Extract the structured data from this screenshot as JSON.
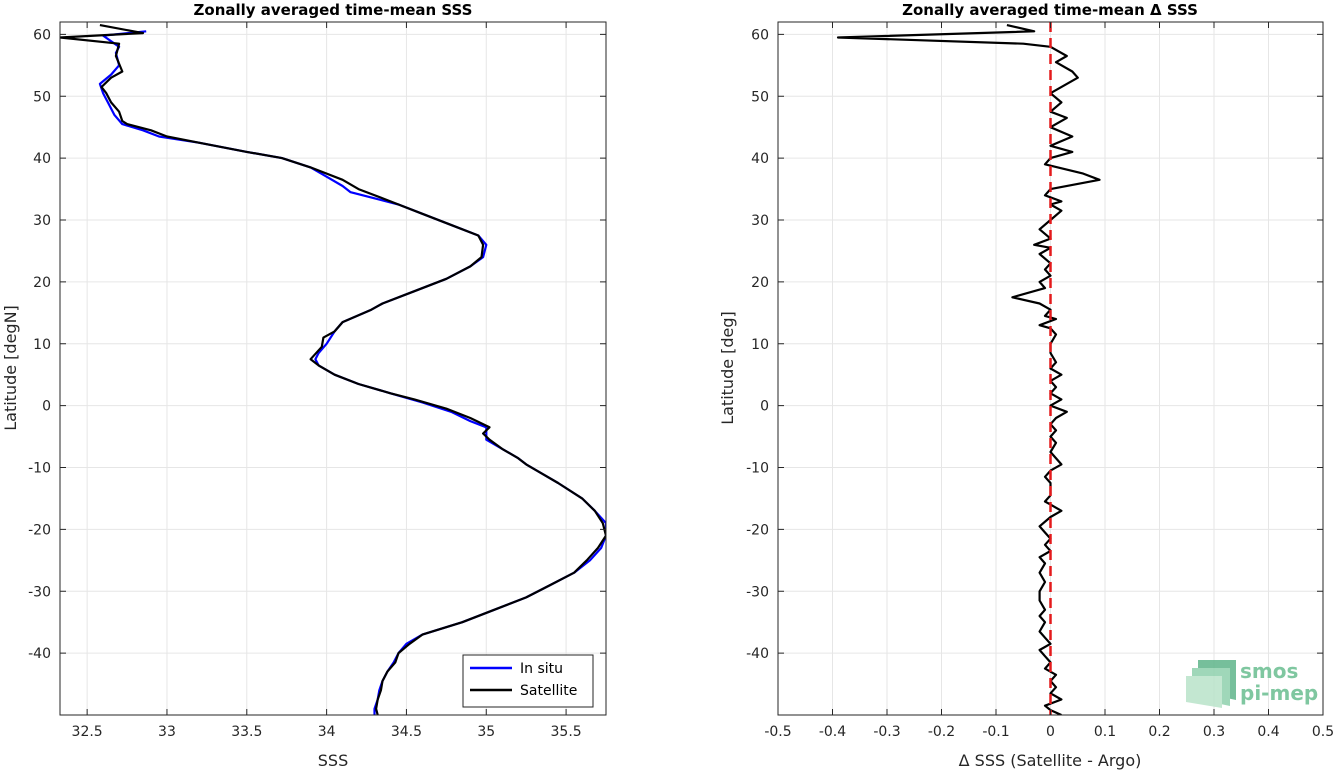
{
  "colors": {
    "in_situ": "#0000ff",
    "satellite": "#000000",
    "zero_line": "#e41a1c",
    "grid": "#e6e6e6",
    "axis": "#262626",
    "logo": "#7fc7a0"
  },
  "logo": {
    "line1": "smos",
    "line2": "pi-mep",
    "icon": "smos-pimep-logo-icon"
  },
  "chart_data": [
    {
      "type": "line",
      "title": "Zonally averaged time-mean SSS",
      "xlabel": "SSS",
      "ylabel": "Latitude [degN]",
      "xlim": [
        32.33,
        35.75
      ],
      "ylim": [
        -50,
        62
      ],
      "xticks": [
        32.5,
        33,
        33.5,
        34,
        34.5,
        35,
        35.5
      ],
      "xticklabels": [
        "32.5",
        "33",
        "33.5",
        "34",
        "34.5",
        "35",
        "35.5"
      ],
      "yticks": [
        -40,
        -30,
        -20,
        -10,
        0,
        10,
        20,
        30,
        40,
        50,
        60
      ],
      "yticklabels": [
        "-40",
        "-30",
        "-20",
        "-10",
        "0",
        "10",
        "20",
        "30",
        "40",
        "50",
        "60"
      ],
      "grid": true,
      "legend_position": "bottom-right",
      "series": [
        {
          "name": "In situ",
          "color": "#0000ff",
          "points": [
            [
              32.87,
              60.5
            ],
            [
              32.6,
              59.8
            ],
            [
              32.7,
              58.0
            ],
            [
              32.68,
              57.0
            ],
            [
              32.7,
              55.0
            ],
            [
              32.65,
              53.5
            ],
            [
              32.58,
              52.0
            ],
            [
              32.6,
              50.5
            ],
            [
              32.63,
              49.0
            ],
            [
              32.67,
              47.0
            ],
            [
              32.72,
              45.5
            ],
            [
              32.85,
              44.5
            ],
            [
              32.95,
              43.5
            ],
            [
              33.2,
              42.5
            ],
            [
              33.5,
              41.0
            ],
            [
              33.72,
              40.0
            ],
            [
              33.9,
              38.5
            ],
            [
              34.0,
              37.0
            ],
            [
              34.1,
              35.5
            ],
            [
              34.15,
              34.5
            ],
            [
              34.3,
              33.5
            ],
            [
              34.45,
              32.5
            ],
            [
              34.6,
              31.0
            ],
            [
              34.8,
              29.0
            ],
            [
              34.95,
              27.5
            ],
            [
              35.0,
              26.0
            ],
            [
              34.98,
              24.0
            ],
            [
              34.9,
              22.5
            ],
            [
              34.75,
              20.5
            ],
            [
              34.55,
              18.5
            ],
            [
              34.35,
              16.5
            ],
            [
              34.28,
              15.5
            ],
            [
              34.1,
              13.5
            ],
            [
              34.05,
              12.0
            ],
            [
              34.0,
              10.0
            ],
            [
              33.95,
              8.5
            ],
            [
              33.93,
              7.5
            ],
            [
              33.95,
              6.5
            ],
            [
              34.05,
              5.0
            ],
            [
              34.2,
              3.5
            ],
            [
              34.4,
              2.0
            ],
            [
              34.6,
              0.5
            ],
            [
              34.78,
              -1.0
            ],
            [
              34.9,
              -2.5
            ],
            [
              35.0,
              -3.5
            ],
            [
              35.0,
              -4.5
            ],
            [
              35.0,
              -5.5
            ],
            [
              35.1,
              -7.0
            ],
            [
              35.2,
              -8.5
            ],
            [
              35.25,
              -9.5
            ],
            [
              35.35,
              -11.0
            ],
            [
              35.45,
              -12.5
            ],
            [
              35.6,
              -15.0
            ],
            [
              35.68,
              -17.0
            ],
            [
              35.75,
              -19.0
            ],
            [
              35.75,
              -21.0
            ],
            [
              35.72,
              -23.0
            ],
            [
              35.65,
              -25.0
            ],
            [
              35.55,
              -27.0
            ],
            [
              35.4,
              -29.0
            ],
            [
              35.25,
              -31.0
            ],
            [
              35.05,
              -33.0
            ],
            [
              34.85,
              -35.0
            ],
            [
              34.6,
              -37.0
            ],
            [
              34.5,
              -38.5
            ],
            [
              34.45,
              -40.0
            ],
            [
              34.42,
              -41.5
            ],
            [
              34.38,
              -43.0
            ],
            [
              34.35,
              -44.5
            ],
            [
              34.33,
              -46.0
            ],
            [
              34.32,
              -47.5
            ],
            [
              34.3,
              -49.0
            ],
            [
              34.3,
              -50.0
            ]
          ]
        },
        {
          "name": "Satellite",
          "color": "#000000",
          "points": [
            [
              32.58,
              61.5
            ],
            [
              32.85,
              60.2
            ],
            [
              32.33,
              59.5
            ],
            [
              32.7,
              58.5
            ],
            [
              32.68,
              56.5
            ],
            [
              32.72,
              54.0
            ],
            [
              32.65,
              53.0
            ],
            [
              32.59,
              51.5
            ],
            [
              32.62,
              50.5
            ],
            [
              32.65,
              49.0
            ],
            [
              32.7,
              47.5
            ],
            [
              32.72,
              46.0
            ],
            [
              32.75,
              45.5
            ],
            [
              32.9,
              44.5
            ],
            [
              33.0,
              43.5
            ],
            [
              33.2,
              42.5
            ],
            [
              33.5,
              41.0
            ],
            [
              33.72,
              40.0
            ],
            [
              33.9,
              38.5
            ],
            [
              34.1,
              36.5
            ],
            [
              34.2,
              35.0
            ],
            [
              34.35,
              33.5
            ],
            [
              34.45,
              32.5
            ],
            [
              34.6,
              31.0
            ],
            [
              34.8,
              29.0
            ],
            [
              34.95,
              27.5
            ],
            [
              34.98,
              26.0
            ],
            [
              34.97,
              24.0
            ],
            [
              34.9,
              22.5
            ],
            [
              34.75,
              20.5
            ],
            [
              34.55,
              18.5
            ],
            [
              34.35,
              16.5
            ],
            [
              34.28,
              15.5
            ],
            [
              34.1,
              13.5
            ],
            [
              34.05,
              12.0
            ],
            [
              33.98,
              11.0
            ],
            [
              33.97,
              9.5
            ],
            [
              33.9,
              7.5
            ],
            [
              33.95,
              6.5
            ],
            [
              34.05,
              5.0
            ],
            [
              34.2,
              3.5
            ],
            [
              34.4,
              2.0
            ],
            [
              34.55,
              1.0
            ],
            [
              34.75,
              -0.5
            ],
            [
              34.9,
              -2.0
            ],
            [
              35.02,
              -3.5
            ],
            [
              34.98,
              -4.5
            ],
            [
              35.02,
              -5.5
            ],
            [
              35.1,
              -7.0
            ],
            [
              35.2,
              -8.5
            ],
            [
              35.25,
              -9.5
            ],
            [
              35.35,
              -11.0
            ],
            [
              35.45,
              -12.5
            ],
            [
              35.6,
              -15.0
            ],
            [
              35.68,
              -17.0
            ],
            [
              35.73,
              -19.0
            ],
            [
              35.75,
              -21.0
            ],
            [
              35.7,
              -23.0
            ],
            [
              35.63,
              -25.0
            ],
            [
              35.55,
              -27.0
            ],
            [
              35.4,
              -29.0
            ],
            [
              35.25,
              -31.0
            ],
            [
              35.05,
              -33.0
            ],
            [
              34.85,
              -35.0
            ],
            [
              34.6,
              -37.0
            ],
            [
              34.52,
              -38.5
            ],
            [
              34.45,
              -40.0
            ],
            [
              34.43,
              -41.5
            ],
            [
              34.38,
              -43.0
            ],
            [
              34.35,
              -44.5
            ],
            [
              34.34,
              -46.0
            ],
            [
              34.32,
              -47.5
            ],
            [
              34.31,
              -49.0
            ],
            [
              34.32,
              -50.0
            ]
          ]
        }
      ]
    },
    {
      "type": "line",
      "title": "Zonally averaged time-mean Δ SSS",
      "xlabel": "Δ SSS (Satellite - Argo)",
      "ylabel": "Latitude [deg]",
      "xlim": [
        -0.5,
        0.5
      ],
      "ylim": [
        -50,
        62
      ],
      "xticks": [
        -0.5,
        -0.4,
        -0.3,
        -0.2,
        -0.1,
        0,
        0.1,
        0.2,
        0.3,
        0.4,
        0.5
      ],
      "xticklabels": [
        "-0.5",
        "-0.4",
        "-0.3",
        "-0.2",
        "-0.1",
        "0",
        "0.1",
        "0.2",
        "0.3",
        "0.4",
        "0.5"
      ],
      "yticks": [
        -40,
        -30,
        -20,
        -10,
        0,
        10,
        20,
        30,
        40,
        50,
        60
      ],
      "yticklabels": [
        "-40",
        "-30",
        "-20",
        "-10",
        "0",
        "10",
        "20",
        "30",
        "40",
        "50",
        "60"
      ],
      "grid": true,
      "reference_line": {
        "x": 0,
        "style": "dashed",
        "color": "#e41a1c"
      },
      "series": [
        {
          "color": "#000000",
          "points": [
            [
              -0.08,
              61.5
            ],
            [
              -0.03,
              60.5
            ],
            [
              -0.39,
              59.5
            ],
            [
              -0.05,
              58.5
            ],
            [
              0.0,
              58.0
            ],
            [
              0.03,
              56.5
            ],
            [
              0.01,
              55.5
            ],
            [
              0.04,
              54.0
            ],
            [
              0.05,
              53.0
            ],
            [
              0.0,
              50.5
            ],
            [
              0.02,
              49.0
            ],
            [
              0.0,
              47.5
            ],
            [
              0.03,
              46.5
            ],
            [
              0.0,
              45.0
            ],
            [
              0.04,
              43.5
            ],
            [
              0.0,
              42.0
            ],
            [
              0.04,
              41.0
            ],
            [
              0.0,
              40.0
            ],
            [
              -0.01,
              39.0
            ],
            [
              0.06,
              37.5
            ],
            [
              0.09,
              36.5
            ],
            [
              0.0,
              35.0
            ],
            [
              -0.01,
              34.0
            ],
            [
              0.02,
              33.0
            ],
            [
              0.0,
              32.5
            ],
            [
              0.02,
              31.5
            ],
            [
              0.0,
              30.0
            ],
            [
              -0.02,
              28.5
            ],
            [
              0.0,
              27.0
            ],
            [
              -0.03,
              26.0
            ],
            [
              0.0,
              25.5
            ],
            [
              -0.02,
              24.5
            ],
            [
              0.0,
              23.0
            ],
            [
              -0.01,
              22.0
            ],
            [
              0.0,
              21.0
            ],
            [
              -0.02,
              20.0
            ],
            [
              -0.01,
              19.0
            ],
            [
              -0.07,
              17.5
            ],
            [
              -0.02,
              16.5
            ],
            [
              0.0,
              15.5
            ],
            [
              -0.01,
              14.5
            ],
            [
              0.01,
              14.0
            ],
            [
              -0.02,
              13.0
            ],
            [
              0.0,
              12.5
            ],
            [
              0.01,
              11.5
            ],
            [
              0.0,
              10.0
            ],
            [
              0.0,
              8.5
            ],
            [
              0.01,
              7.0
            ],
            [
              0.0,
              6.0
            ],
            [
              0.02,
              5.0
            ],
            [
              0.0,
              4.0
            ],
            [
              0.01,
              3.0
            ],
            [
              0.0,
              2.0
            ],
            [
              0.02,
              1.0
            ],
            [
              0.0,
              0.0
            ],
            [
              0.03,
              -1.0
            ],
            [
              0.01,
              -2.0
            ],
            [
              0.0,
              -3.0
            ],
            [
              0.01,
              -4.0
            ],
            [
              0.0,
              -5.0
            ],
            [
              0.01,
              -6.0
            ],
            [
              0.0,
              -7.5
            ],
            [
              0.02,
              -9.5
            ],
            [
              0.0,
              -10.5
            ],
            [
              -0.01,
              -11.5
            ],
            [
              0.0,
              -12.5
            ],
            [
              0.0,
              -14.5
            ],
            [
              -0.01,
              -15.5
            ],
            [
              0.0,
              -16.0
            ],
            [
              0.02,
              -17.0
            ],
            [
              0.0,
              -18.0
            ],
            [
              -0.02,
              -19.5
            ],
            [
              -0.01,
              -20.5
            ],
            [
              0.0,
              -21.5
            ],
            [
              -0.01,
              -22.5
            ],
            [
              0.0,
              -23.5
            ],
            [
              -0.02,
              -24.5
            ],
            [
              -0.01,
              -25.5
            ],
            [
              -0.02,
              -27.0
            ],
            [
              -0.01,
              -28.5
            ],
            [
              -0.02,
              -30.0
            ],
            [
              -0.02,
              -31.5
            ],
            [
              -0.01,
              -33.0
            ],
            [
              -0.02,
              -34.0
            ],
            [
              -0.01,
              -35.0
            ],
            [
              -0.02,
              -36.5
            ],
            [
              -0.01,
              -37.5
            ],
            [
              0.0,
              -38.5
            ],
            [
              -0.02,
              -39.5
            ],
            [
              -0.01,
              -40.5
            ],
            [
              0.0,
              -41.5
            ],
            [
              -0.01,
              -42.5
            ],
            [
              0.01,
              -43.5
            ],
            [
              0.0,
              -44.5
            ],
            [
              0.01,
              -45.5
            ],
            [
              0.0,
              -46.5
            ],
            [
              0.02,
              -47.5
            ],
            [
              -0.01,
              -48.5
            ],
            [
              0.0,
              -49.2
            ],
            [
              0.02,
              -50.0
            ]
          ]
        }
      ]
    }
  ]
}
